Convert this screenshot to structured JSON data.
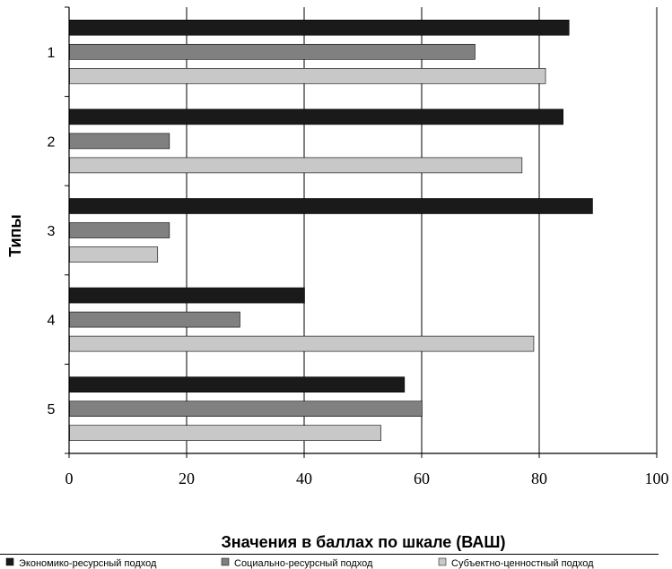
{
  "chart_data": {
    "type": "bar",
    "orientation": "horizontal",
    "categories": [
      "1",
      "2",
      "3",
      "4",
      "5"
    ],
    "series": [
      {
        "name": "Экономико-ресурсный подход",
        "color": "#1a1a1a",
        "values": [
          85,
          84,
          89,
          40,
          57
        ]
      },
      {
        "name": "Социально-ресурсный подход",
        "color": "#808080",
        "values": [
          69,
          17,
          17,
          29,
          60
        ]
      },
      {
        "name": "Субъектно-ценностный подход",
        "color": "#c8c8c8",
        "values": [
          81,
          77,
          15,
          79,
          53
        ]
      }
    ],
    "xlabel": "Значения в баллах по шкале (ВАШ)",
    "ylabel": "Типы",
    "xlim": [
      0,
      100
    ],
    "xticks": [
      0,
      20,
      40,
      60,
      80,
      100
    ],
    "grid": "vertical",
    "legend": "bottom"
  }
}
